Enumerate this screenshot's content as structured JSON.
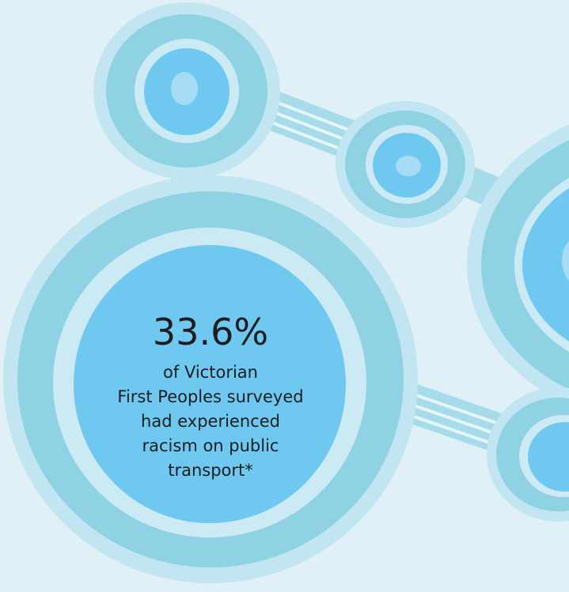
{
  "stat": {
    "value": "33.6%",
    "description": [
      "of Victorian",
      "First Peoples surveyed",
      "had experienced",
      "racism on public",
      "transport*"
    ]
  }
}
